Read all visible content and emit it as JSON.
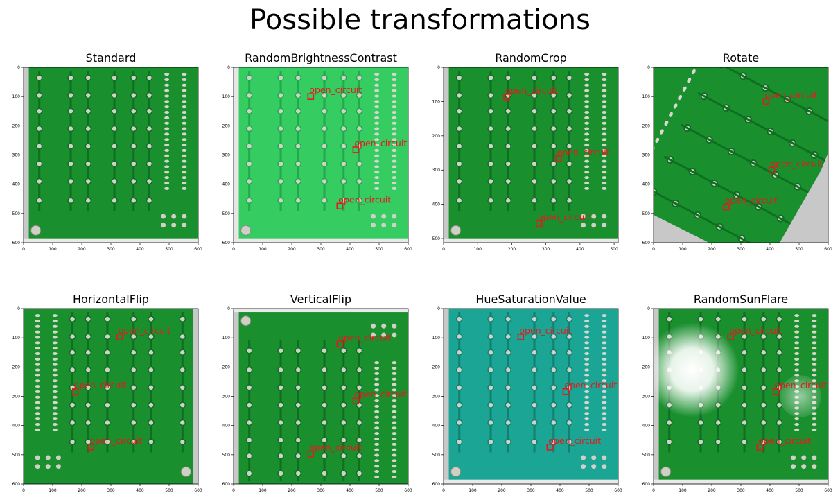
{
  "figure": {
    "title": "Possible transformations"
  },
  "colors": {
    "annotation": "#e41a1c",
    "board_green": "#1a8f2e",
    "board_bright": "#35cc62",
    "board_teal": "#1aa595",
    "edge_gray": "#c8c8c8"
  },
  "chart_data": [
    {
      "type": "image",
      "title": "Standard",
      "xlim": [
        0,
        600
      ],
      "ylim": [
        600,
        0
      ],
      "xticks": [
        0,
        100,
        200,
        300,
        400,
        500,
        600
      ],
      "yticks": [
        0,
        100,
        200,
        300,
        400,
        500,
        600
      ],
      "style": "standard",
      "boxes": []
    },
    {
      "type": "image",
      "title": "RandomBrightnessContrast",
      "xlim": [
        0,
        600
      ],
      "ylim": [
        600,
        0
      ],
      "xticks": [
        0,
        100,
        200,
        300,
        400,
        500,
        600
      ],
      "yticks": [
        0,
        100,
        200,
        300,
        400,
        500,
        600
      ],
      "style": "bright",
      "boxes": [
        {
          "label": "open_circuit",
          "x": 265,
          "y": 100
        },
        {
          "label": "open_circuit",
          "x": 420,
          "y": 282
        },
        {
          "label": "open_circuit",
          "x": 365,
          "y": 475
        }
      ]
    },
    {
      "type": "image",
      "title": "RandomCrop",
      "xlim": [
        0,
        512
      ],
      "ylim": [
        512,
        0
      ],
      "xticks": [
        0,
        100,
        200,
        300,
        400,
        500
      ],
      "yticks": [
        0,
        100,
        200,
        300,
        400,
        500
      ],
      "style": "standard",
      "boxes": [
        {
          "label": "open_circuit",
          "x": 185,
          "y": 87
        },
        {
          "label": "open_circuit",
          "x": 337,
          "y": 267
        },
        {
          "label": "open_circuit",
          "x": 280,
          "y": 456
        }
      ]
    },
    {
      "type": "image",
      "title": "Rotate",
      "xlim": [
        0,
        600
      ],
      "ylim": [
        600,
        0
      ],
      "xticks": [
        0,
        100,
        200,
        300,
        400,
        500,
        600
      ],
      "yticks": [
        0,
        100,
        200,
        300,
        400,
        500,
        600
      ],
      "style": "rotate",
      "boxes": [
        {
          "label": "open_circuit",
          "x": 387,
          "y": 117
        },
        {
          "label": "open_circuit",
          "x": 406,
          "y": 352
        },
        {
          "label": "open_circuit",
          "x": 250,
          "y": 478
        }
      ]
    },
    {
      "type": "image",
      "title": "HorizontalFlip",
      "xlim": [
        0,
        600
      ],
      "ylim": [
        600,
        0
      ],
      "xticks": [
        0,
        100,
        200,
        300,
        400,
        500,
        600
      ],
      "yticks": [
        0,
        100,
        200,
        300,
        400,
        500,
        600
      ],
      "style": "hflip",
      "boxes": [
        {
          "label": "open_circuit",
          "x": 330,
          "y": 97
        },
        {
          "label": "open_circuit",
          "x": 178,
          "y": 284
        },
        {
          "label": "open_circuit",
          "x": 232,
          "y": 474
        }
      ]
    },
    {
      "type": "image",
      "title": "VerticalFlip",
      "xlim": [
        0,
        600
      ],
      "ylim": [
        600,
        0
      ],
      "xticks": [
        0,
        100,
        200,
        300,
        400,
        500,
        600
      ],
      "yticks": [
        0,
        100,
        200,
        300,
        400,
        500,
        600
      ],
      "style": "vflip",
      "boxes": [
        {
          "label": "open_circuit",
          "x": 365,
          "y": 122
        },
        {
          "label": "open_circuit",
          "x": 420,
          "y": 316
        },
        {
          "label": "open_circuit",
          "x": 265,
          "y": 497
        }
      ]
    },
    {
      "type": "image",
      "title": "HueSaturationValue",
      "xlim": [
        0,
        600
      ],
      "ylim": [
        600,
        0
      ],
      "xticks": [
        0,
        100,
        200,
        300,
        400,
        500,
        600
      ],
      "yticks": [
        0,
        100,
        200,
        300,
        400,
        500,
        600
      ],
      "style": "teal",
      "boxes": [
        {
          "label": "open_circuit",
          "x": 265,
          "y": 97
        },
        {
          "label": "open_circuit",
          "x": 420,
          "y": 284
        },
        {
          "label": "open_circuit",
          "x": 365,
          "y": 474
        }
      ]
    },
    {
      "type": "image",
      "title": "RandomSunFlare",
      "xlim": [
        0,
        600
      ],
      "ylim": [
        600,
        0
      ],
      "xticks": [
        0,
        100,
        200,
        300,
        400,
        500,
        600
      ],
      "yticks": [
        0,
        100,
        200,
        300,
        400,
        500,
        600
      ],
      "style": "flare",
      "boxes": [
        {
          "label": "open_circuit",
          "x": 265,
          "y": 97
        },
        {
          "label": "open_circuit",
          "x": 420,
          "y": 284
        },
        {
          "label": "open_circuit",
          "x": 365,
          "y": 474
        }
      ]
    }
  ]
}
